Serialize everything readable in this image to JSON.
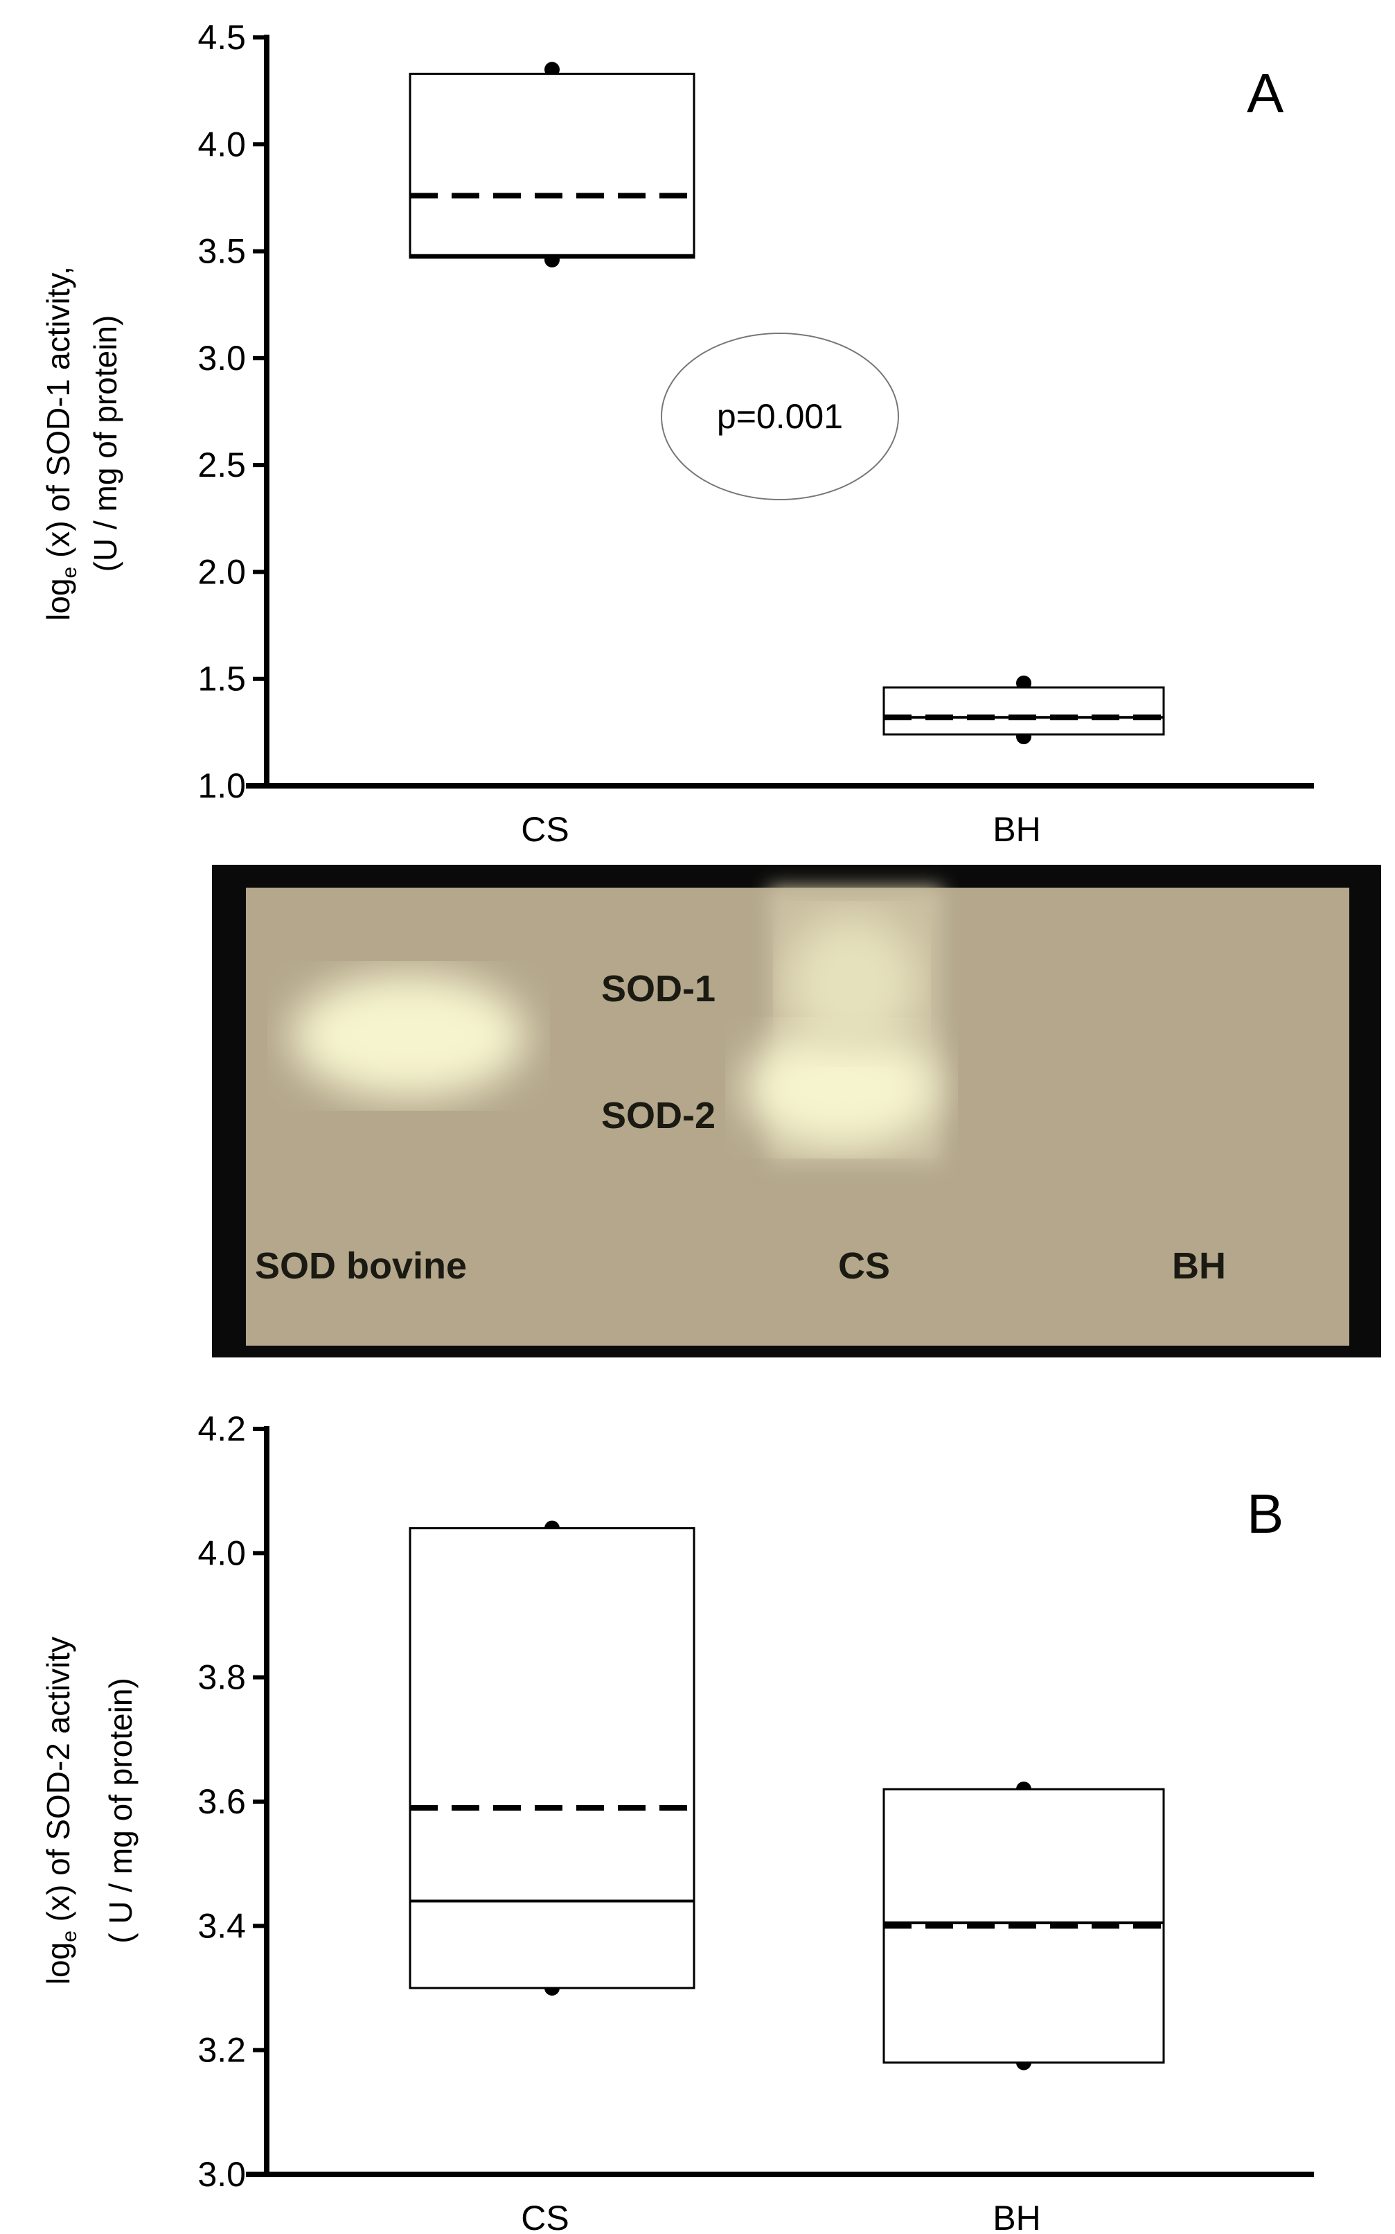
{
  "chart_data": [
    {
      "type": "box",
      "panel_label": "A",
      "ylabel_line1": "log",
      "ylabel_sub": "e",
      "ylabel_rest": " (x) of SOD-1 activity,",
      "ylabel_line2": "(U / mg of protein)",
      "ylim": [
        1.0,
        4.5
      ],
      "yticks": [
        "1.0",
        "1.5",
        "2.0",
        "2.5",
        "3.0",
        "3.5",
        "4.0",
        "4.5"
      ],
      "categories": [
        "CS",
        "BH"
      ],
      "boxes": [
        {
          "q1": 3.47,
          "median": 3.48,
          "q3": 4.33,
          "mean": 3.76,
          "p_low": 3.46,
          "p_high": 4.35
        },
        {
          "q1": 1.24,
          "median": 1.32,
          "q3": 1.46,
          "mean": 1.32,
          "p_low": 1.23,
          "p_high": 1.48
        }
      ],
      "annotation": "p=0.001"
    },
    {
      "type": "box",
      "panel_label": "B",
      "ylabel_line1": "log",
      "ylabel_sub": "e",
      "ylabel_rest": " (x) of SOD-2 activity",
      "ylabel_line2": "( U / mg of protein)",
      "ylim": [
        3.0,
        4.2
      ],
      "yticks": [
        "3.0",
        "3.2",
        "3.4",
        "3.6",
        "3.8",
        "4.0",
        "4.2"
      ],
      "categories": [
        "CS",
        "BH"
      ],
      "boxes": [
        {
          "q1": 3.3,
          "median": 3.44,
          "q3": 4.04,
          "mean": 3.59,
          "p_low": 3.3,
          "p_high": 4.04
        },
        {
          "q1": 3.18,
          "median": 3.405,
          "q3": 3.62,
          "mean": 3.4,
          "p_low": 3.18,
          "p_high": 3.62
        }
      ]
    }
  ],
  "gel": {
    "band_labels": [
      "SOD-1",
      "SOD-2"
    ],
    "lane_labels": [
      "SOD bovine",
      "CS",
      "BH"
    ],
    "colors": {
      "background": "#b4a78c",
      "frame": "#0a0a0a",
      "band": "#f6f4cf"
    }
  }
}
